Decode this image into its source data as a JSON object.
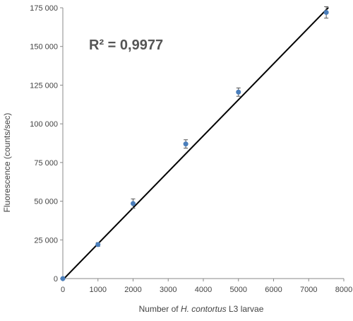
{
  "chart_data": {
    "type": "scatter",
    "ylabel": "Fluorescence (counts/sec)",
    "xlabel_parts": [
      {
        "text": "Number of ",
        "italic": false
      },
      {
        "text": "H. contortus",
        "italic": true
      },
      {
        "text": " L3 larvae",
        "italic": false
      }
    ],
    "annotation": "R² = 0,9977",
    "xlim": [
      0,
      8000
    ],
    "ylim": [
      0,
      175000
    ],
    "x_ticks": [
      "0",
      "1000",
      "2000",
      "3000",
      "4000",
      "5000",
      "6000",
      "7000",
      "8000"
    ],
    "y_ticks": [
      "0",
      "25 000",
      "50 000",
      "75 000",
      "100 000",
      "125 000",
      "150 000",
      "175 000"
    ],
    "points": [
      {
        "x": 0,
        "y": 0,
        "err": 0
      },
      {
        "x": 1000,
        "y": 22000,
        "err": 1200
      },
      {
        "x": 2000,
        "y": 48500,
        "err": 3000
      },
      {
        "x": 3500,
        "y": 87000,
        "err": 2700
      },
      {
        "x": 5000,
        "y": 120500,
        "err": 2700
      },
      {
        "x": 7500,
        "y": 172000,
        "err": 3700
      }
    ],
    "trendline": {
      "slope": 23.27,
      "intercept": -800
    },
    "colors": {
      "marker": "#4a7ebb",
      "line": "#000000",
      "axis": "#888888",
      "text": "#444444"
    }
  }
}
